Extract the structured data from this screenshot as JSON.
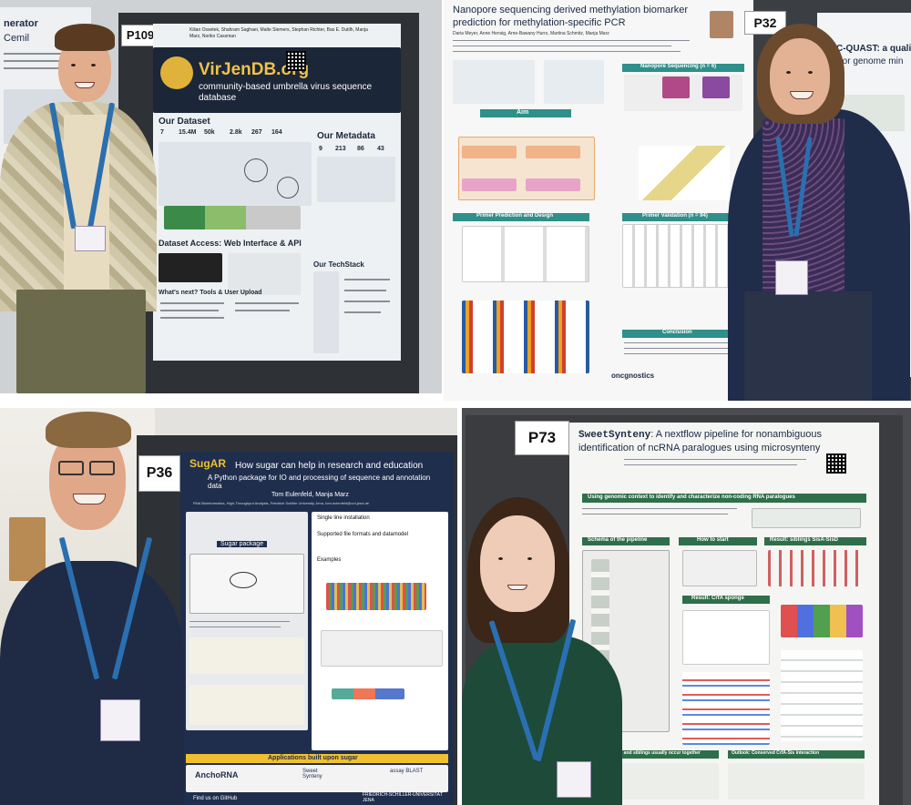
{
  "q1": {
    "left_poster_fragment": "nerator",
    "left_poster_fragment2": "Cemil",
    "poster_number": "P109",
    "authors": "Kilian Ossetek, Shahram Saghaei, Malte Siemers, Stephan Richter, Bas E. Dutilh, Manja Marz, Noriko Cassman",
    "logo": "VirJenDB.org",
    "subtitle": "community-based umbrella virus sequence database",
    "section_dataset": "Our Dataset",
    "section_metadata": "Our Metadata",
    "dataset_numbers": [
      "7",
      "15.4M",
      "50k",
      "2.8k",
      "267",
      "164"
    ],
    "metadata_numbers": [
      "9",
      "213",
      "86",
      "43"
    ],
    "section_access": "Dataset Access: Web Interface & API",
    "section_techstack": "Our TechStack",
    "section_next": "What's next? Tools & User Upload"
  },
  "q2": {
    "title": "Nanopore sequencing derived methylation biomarker prediction for methylation-specific PCR",
    "authors": "Daria Meyer, Anne Hensig, Arne-Bawany Hurrs, Martina Schmitz, Manja Marz",
    "poster_number": "P32",
    "right_poster_fragment": "BGC-QUAST: a quali",
    "right_poster_fragment2": "tool for genome min",
    "section_nanopore": "Nanopore Sequencing (n = 6)",
    "section_aim": "Aim",
    "section_primer": "Primer Prediction and Design",
    "section_validation": "Primer Validation (n = 94)",
    "section_conclusion": "Conclusion",
    "sponsor": "oncgnostics"
  },
  "q3": {
    "poster_number": "P36",
    "logo_text": "SugAR",
    "title": "How sugar can help in research and education",
    "subtitle": "A Python package for IO and processing of sequence and annotation data",
    "authors": "Tom Eulenfeld, Manja Marz",
    "affiliation": "RNA Bioinformatics, High-Throughput Analysis, Friedrich Schiller University Jena, tom.eulenfeld@uni-jena.de",
    "section_package": "Sugar package",
    "section_install": "Single line installation",
    "section_formats": "Supported file formats and datamodel",
    "section_examples": "Examples",
    "section_apps": "Applications built upon sugar",
    "app_anchorna": "AnchoRNA",
    "app_synteny": "Sweet Synteny",
    "app_blast": "assay BLAST",
    "github": "Find us on GitHub",
    "university": "FRIEDRICH-SCHILLER-UNIVERSITÄT JENA"
  },
  "q4": {
    "poster_number": "P73",
    "title_part1": "SweetSynteny",
    "title_part2": ": A nextflow pipeline for nonambiguous identification of ncRNA paralogues using microsynteny",
    "section_context": "Using genomic context to identify and characterize non-coding RNA paralogues",
    "section_schema": "Schema of the pipeline",
    "section_start": "How to start",
    "section_result1": "Result: siblings SisA-SisD",
    "section_result2": "Result: CrfA sponge",
    "section_outlook1": "Outlook: Sponge and siblings usually occur together",
    "section_outlook2": "Outlook: Conserved CrfA-Sis interaction"
  },
  "colors": {
    "dark_navy": "#1f2e4d",
    "green_bar": "#2f6e4a",
    "teal_bar": "#2f8f8a",
    "lanyard_blue": "#2a6fb0",
    "purple_poster": "#5b4a86"
  }
}
